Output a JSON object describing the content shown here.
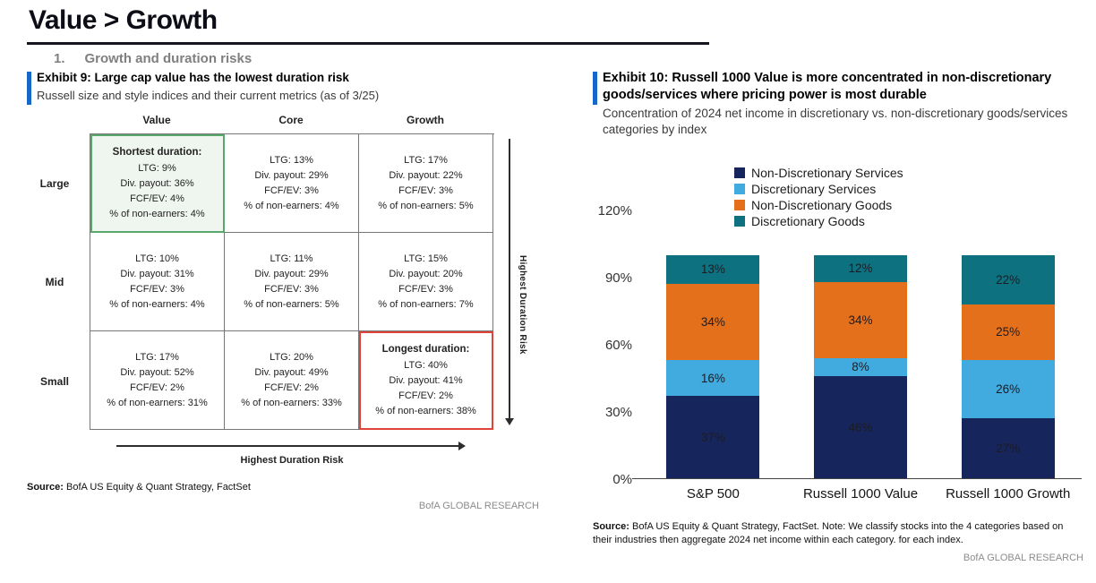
{
  "page": {
    "title": "Value > Growth",
    "section_number": "1.",
    "section_title": "Growth and duration risks"
  },
  "exhibit9": {
    "title": "Exhibit 9: Large cap value has the lowest duration risk",
    "subtitle": "Russell size and style indices and their current metrics (as of 3/25)",
    "matrix": {
      "col_headers": [
        "Value",
        "Core",
        "Growth"
      ],
      "row_headers": [
        "Large",
        "Mid",
        "Small"
      ],
      "cells": [
        {
          "heading": "Shortest duration:",
          "highlight": "green",
          "lines": [
            "LTG: 9%",
            "Div. payout: 36%",
            "FCF/EV: 4%",
            "% of non-earners: 4%"
          ]
        },
        {
          "heading": "",
          "highlight": "",
          "lines": [
            "LTG: 13%",
            "Div. payout: 29%",
            "FCF/EV: 3%",
            "% of non-earners: 4%"
          ]
        },
        {
          "heading": "",
          "highlight": "",
          "lines": [
            "LTG: 17%",
            "Div. payout: 22%",
            "FCF/EV: 3%",
            "% of non-earners: 5%"
          ]
        },
        {
          "heading": "",
          "highlight": "",
          "lines": [
            "LTG: 10%",
            "Div. payout: 31%",
            "FCF/EV: 3%",
            "% of non-earners: 4%"
          ]
        },
        {
          "heading": "",
          "highlight": "",
          "lines": [
            "LTG: 11%",
            "Div. payout: 29%",
            "FCF/EV: 3%",
            "% of non-earners: 5%"
          ]
        },
        {
          "heading": "",
          "highlight": "",
          "lines": [
            "LTG: 15%",
            "Div. payout: 20%",
            "FCF/EV: 3%",
            "% of non-earners: 7%"
          ]
        },
        {
          "heading": "",
          "highlight": "",
          "lines": [
            "LTG: 17%",
            "Div. payout: 52%",
            "FCF/EV: 2%",
            "% of non-earners: 31%"
          ]
        },
        {
          "heading": "",
          "highlight": "",
          "lines": [
            "LTG: 20%",
            "Div. payout: 49%",
            "FCF/EV: 2%",
            "% of non-earners: 33%"
          ]
        },
        {
          "heading": "Longest duration:",
          "highlight": "red",
          "lines": [
            "LTG: 40%",
            "Div. payout: 41%",
            "FCF/EV: 2%",
            "% of non-earners: 38%"
          ]
        }
      ]
    },
    "arrow_label": "Highest Duration Risk",
    "source_label": "Source:",
    "source_text": "BofA US Equity & Quant Strategy, FactSet",
    "branding": "BofA GLOBAL RESEARCH"
  },
  "exhibit10": {
    "title": "Exhibit 10: Russell 1000 Value is more concentrated in non-discretionary goods/services where pricing power is most durable",
    "subtitle": "Concentration of 2024 net income in discretionary vs. non-discretionary goods/services categories by index",
    "source_label": "Source:",
    "source_text": "BofA US Equity & Quant Strategy, FactSet. Note: We classify stocks into the 4 categories based on their industries then aggregate 2024 net income within each category. for each index.",
    "branding": "BofA GLOBAL RESEARCH"
  },
  "chart_data": {
    "type": "bar",
    "stacked": true,
    "title": "Concentration of 2024 net income in discretionary vs. non-discretionary goods/services categories by index",
    "categories": [
      "S&P 500",
      "Russell 1000 Value",
      "Russell 1000 Growth"
    ],
    "series": [
      {
        "name": "Non-Discretionary Services",
        "color": "#16265c",
        "values": [
          37,
          46,
          27
        ]
      },
      {
        "name": "Discretionary Services",
        "color": "#41aadf",
        "values": [
          16,
          8,
          26
        ]
      },
      {
        "name": "Non-Discretionary Goods",
        "color": "#e4701b",
        "values": [
          34,
          34,
          25
        ]
      },
      {
        "name": "Discretionary Goods",
        "color": "#0e7180",
        "values": [
          13,
          12,
          22
        ]
      }
    ],
    "unit": "%",
    "ylim": [
      0,
      120
    ],
    "yticks": [
      0,
      30,
      60,
      90,
      120
    ],
    "ytick_labels": [
      "0%",
      "30%",
      "60%",
      "90%",
      "120%"
    ],
    "legend_position": "top-left",
    "grid": false
  },
  "colors": {
    "accent_bar": "#1767c8",
    "highlight_green": "#58a86b",
    "highlight_red": "#e04338",
    "branding_gray": "#8c8c8c"
  }
}
